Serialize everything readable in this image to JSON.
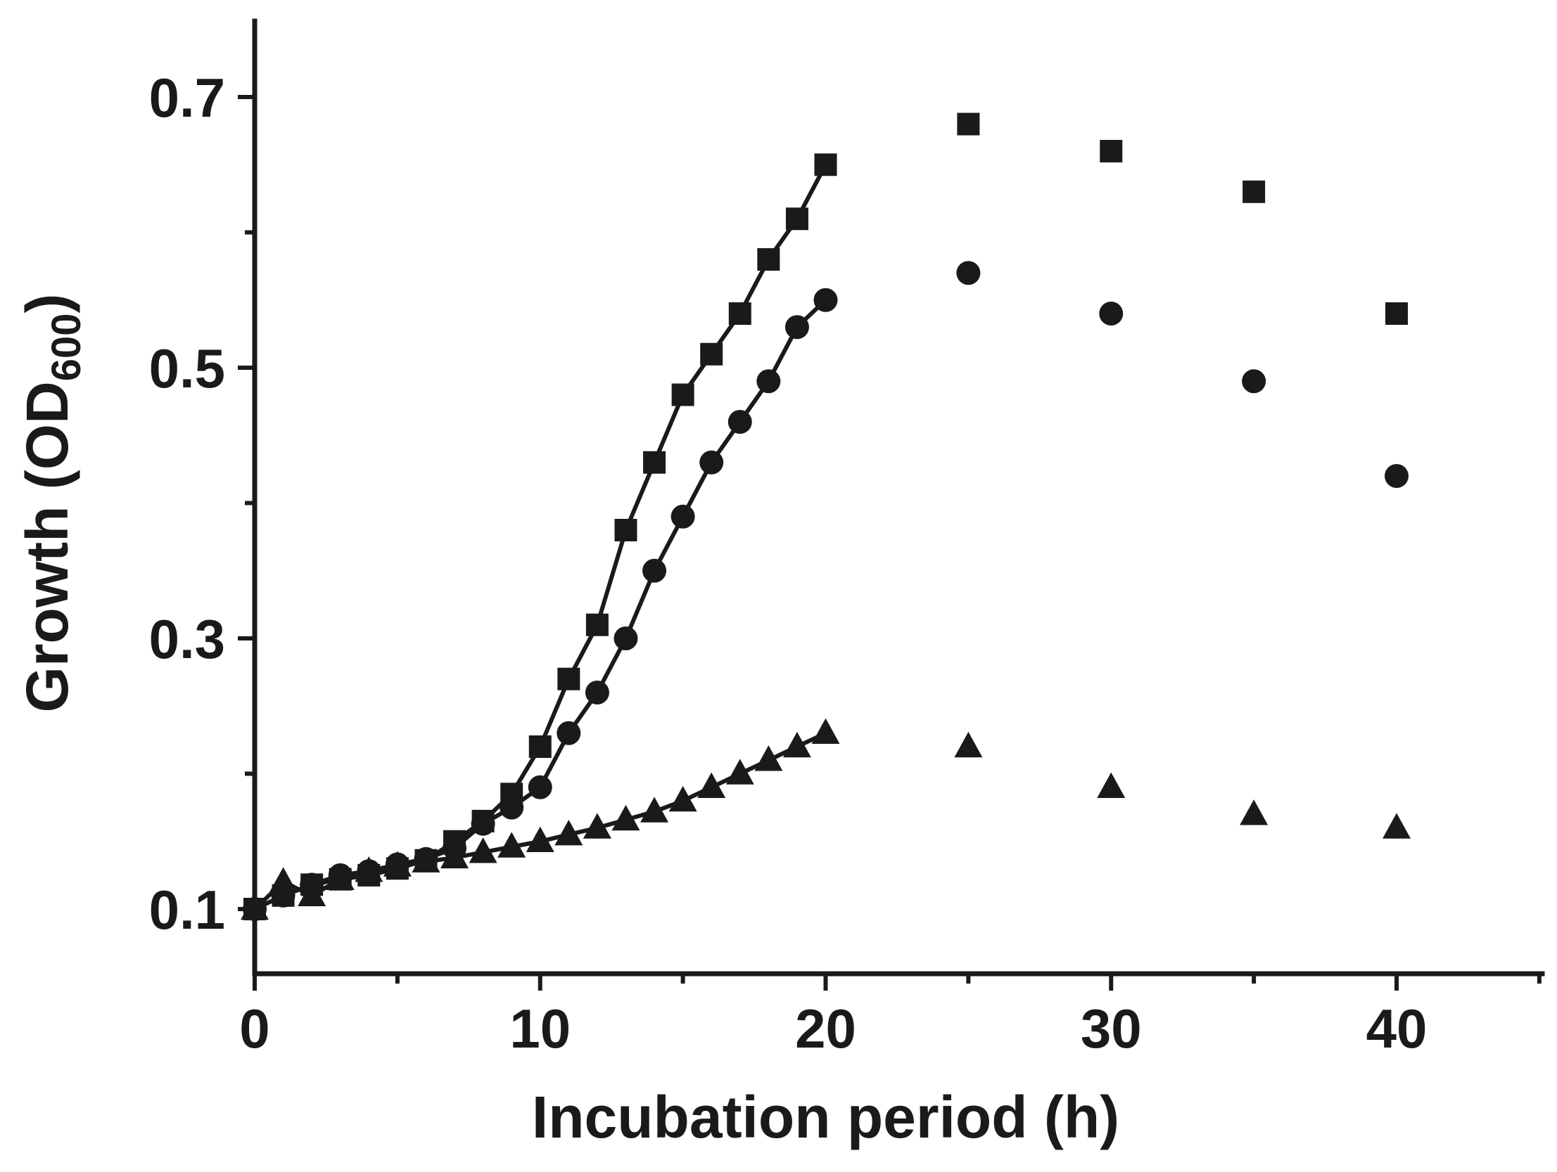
{
  "chart_data": {
    "type": "line",
    "title": "",
    "xlabel": "Incubation period (h)",
    "ylabel_main": "Growth (OD",
    "ylabel_sub": "600",
    "ylabel_close": ")",
    "xlim": [
      0,
      45
    ],
    "ylim": [
      0.05,
      0.75
    ],
    "xticks": [
      0,
      10,
      20,
      30,
      40
    ],
    "xtick_labels": [
      "0",
      "10",
      "20",
      "30",
      "40"
    ],
    "yticks": [
      0.1,
      0.3,
      0.5,
      0.7
    ],
    "ytick_labels": [
      "0.1",
      "0.3",
      "0.5",
      "0.7"
    ],
    "grid": false,
    "series": [
      {
        "name": "square",
        "marker": "square",
        "line_until_x": 20,
        "points": [
          [
            0,
            0.1
          ],
          [
            1,
            0.11
          ],
          [
            2,
            0.118
          ],
          [
            3,
            0.122
          ],
          [
            4,
            0.125
          ],
          [
            5,
            0.13
          ],
          [
            6,
            0.136
          ],
          [
            7,
            0.15
          ],
          [
            8,
            0.165
          ],
          [
            9,
            0.185
          ],
          [
            10,
            0.22
          ],
          [
            11,
            0.27
          ],
          [
            12,
            0.31
          ],
          [
            13,
            0.38
          ],
          [
            14,
            0.43
          ],
          [
            15,
            0.48
          ],
          [
            16,
            0.51
          ],
          [
            17,
            0.54
          ],
          [
            18,
            0.58
          ],
          [
            19,
            0.61
          ],
          [
            20,
            0.65
          ],
          [
            25,
            0.68
          ],
          [
            30,
            0.66
          ],
          [
            35,
            0.63
          ],
          [
            40,
            0.54
          ]
        ]
      },
      {
        "name": "circle",
        "marker": "circle",
        "line_until_x": 20,
        "points": [
          [
            0,
            0.1
          ],
          [
            1,
            0.11
          ],
          [
            2,
            0.118
          ],
          [
            3,
            0.125
          ],
          [
            4,
            0.128
          ],
          [
            5,
            0.133
          ],
          [
            6,
            0.137
          ],
          [
            7,
            0.145
          ],
          [
            8,
            0.163
          ],
          [
            9,
            0.175
          ],
          [
            10,
            0.19
          ],
          [
            11,
            0.23
          ],
          [
            12,
            0.26
          ],
          [
            13,
            0.3
          ],
          [
            14,
            0.35
          ],
          [
            15,
            0.39
          ],
          [
            16,
            0.43
          ],
          [
            17,
            0.46
          ],
          [
            18,
            0.49
          ],
          [
            19,
            0.53
          ],
          [
            20,
            0.55
          ],
          [
            25,
            0.57
          ],
          [
            30,
            0.54
          ],
          [
            35,
            0.49
          ],
          [
            40,
            0.42
          ]
        ]
      },
      {
        "name": "triangle",
        "marker": "triangle",
        "line_until_x": 20,
        "points": [
          [
            0,
            0.1
          ],
          [
            1,
            0.12
          ],
          [
            2,
            0.11
          ],
          [
            3,
            0.122
          ],
          [
            4,
            0.128
          ],
          [
            5,
            0.132
          ],
          [
            6,
            0.135
          ],
          [
            7,
            0.138
          ],
          [
            8,
            0.142
          ],
          [
            9,
            0.146
          ],
          [
            10,
            0.15
          ],
          [
            11,
            0.155
          ],
          [
            12,
            0.16
          ],
          [
            13,
            0.166
          ],
          [
            14,
            0.172
          ],
          [
            15,
            0.18
          ],
          [
            16,
            0.19
          ],
          [
            17,
            0.2
          ],
          [
            18,
            0.21
          ],
          [
            19,
            0.22
          ],
          [
            20,
            0.23
          ],
          [
            25,
            0.22
          ],
          [
            30,
            0.19
          ],
          [
            35,
            0.17
          ],
          [
            40,
            0.16
          ]
        ]
      }
    ]
  }
}
